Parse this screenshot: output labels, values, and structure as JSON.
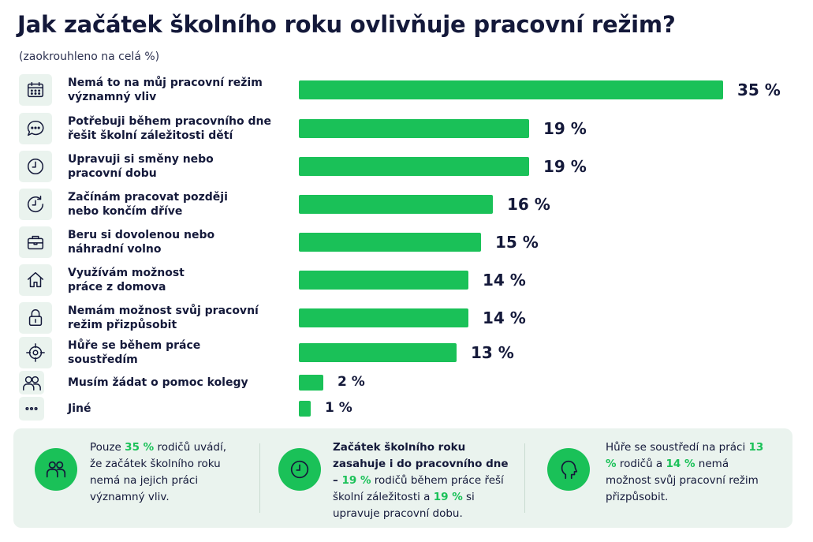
{
  "title": "Jak začátek školního roku ovlivňuje pracovní režim?",
  "subtitle": "(zaokrouhleno na celá %)",
  "chart_data": {
    "type": "bar",
    "orientation": "horizontal",
    "title": "Jak začátek školního roku ovlivňuje pracovní režim?",
    "subtitle": "(zaokrouhleno na celá %)",
    "unit": "%",
    "bar_color": "#1ac158",
    "categories": [
      "Nemá to na můj pracovní režim významný vliv",
      "Potřebuji během pracovního dne řešit školní záležitosti dětí",
      "Upravuji si směny nebo pracovní dobu",
      "Začínám pracovat později nebo končím dříve",
      "Beru si dovolenou nebo náhradní volno",
      "Využívám možnost práce z domova",
      "Nemám možnost svůj pracovní režim přizpůsobit",
      "Hůře se během práce soustředím",
      "Musím žádat o pomoc kolegy",
      "Jiné"
    ],
    "values": [
      35,
      19,
      19,
      16,
      15,
      14,
      14,
      13,
      2,
      1
    ],
    "value_labels": [
      "35 %",
      "19 %",
      "19 %",
      "16 %",
      "15 %",
      "14 %",
      "14 %",
      "13 %",
      "2 %",
      "1 %"
    ],
    "icons": [
      "calendar-icon",
      "chat-bubble-icon",
      "clock-icon",
      "clock-arrow-icon",
      "briefcase-icon",
      "home-icon",
      "lock-icon",
      "target-icon",
      "people-icon",
      "dots-icon"
    ],
    "label_lines": [
      [
        "Nemá to na můj pracovní režim",
        "významný vliv"
      ],
      [
        "Potřebuji během pracovního dne",
        "řešit školní záležitosti dětí"
      ],
      [
        "Upravuji si směny nebo",
        "pracovní dobu"
      ],
      [
        "Začínám pracovat později",
        "nebo končím dříve"
      ],
      [
        "Beru si dovolenou nebo",
        "náhradní volno"
      ],
      [
        "Využívám možnost",
        "práce z domova"
      ],
      [
        "Nemám možnost svůj pracovní",
        "režim přizpůsobit"
      ],
      [
        "Hůře se během práce",
        "soustředím"
      ],
      [
        "Musím žádat o pomoc kolegy"
      ],
      [
        "Jiné"
      ]
    ]
  },
  "notes": [
    {
      "icon": "people-icon",
      "parts": [
        {
          "text": "Pouze ",
          "style": ""
        },
        {
          "text": "35 %",
          "style": "hl"
        },
        {
          "text": " rodičů uvádí, že začátek školního roku nemá na jejich práci významný vliv.",
          "style": ""
        }
      ]
    },
    {
      "icon": "clock-icon",
      "parts": [
        {
          "text": "Začátek školního roku zasahuje i do pracovního dne – ",
          "style": "b"
        },
        {
          "text": "19 %",
          "style": "hl"
        },
        {
          "text": " rodičů během práce řeší školní záležitosti a ",
          "style": ""
        },
        {
          "text": "19 %",
          "style": "hl"
        },
        {
          "text": " si upravuje pracovní dobu.",
          "style": ""
        }
      ]
    },
    {
      "icon": "head-icon",
      "parts": [
        {
          "text": "Hůře se soustředí na práci ",
          "style": ""
        },
        {
          "text": "13 %",
          "style": "hl"
        },
        {
          "text": " rodičů a ",
          "style": ""
        },
        {
          "text": "14 %",
          "style": "hl"
        },
        {
          "text": " nemá možnost svůj pracovní režim přizpůsobit.",
          "style": ""
        }
      ]
    }
  ]
}
